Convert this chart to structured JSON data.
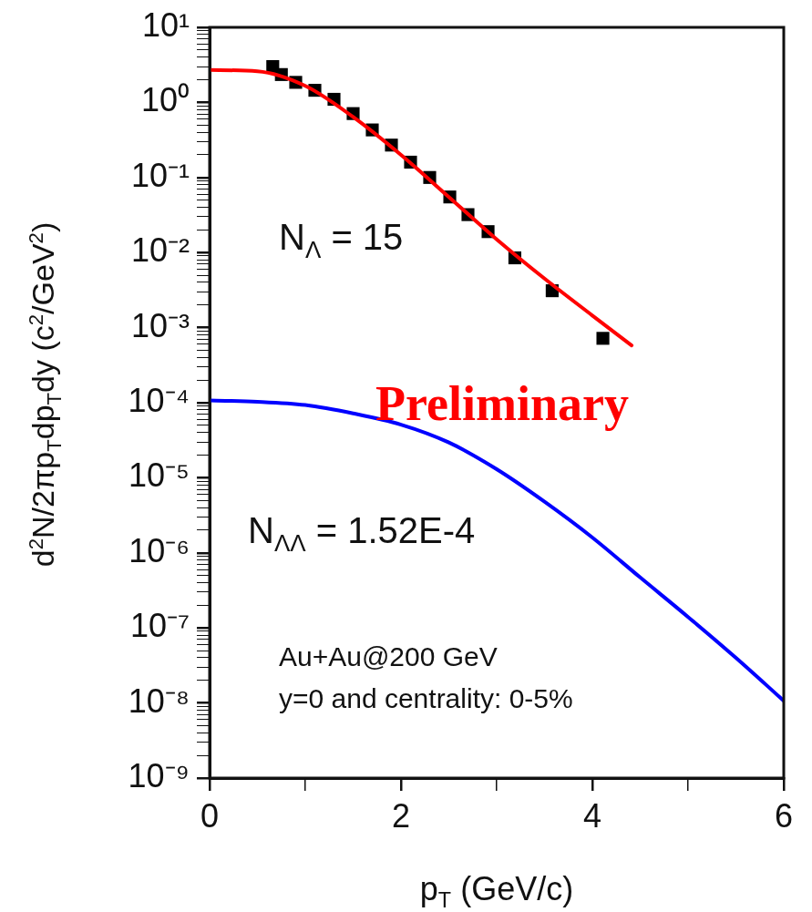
{
  "chart_data": {
    "type": "line",
    "xlabel": "p$_{T}$ (GeV/c)",
    "ylabel": "d$^{2}$N/2πp$_{T}$dp$_{T}$dy (c$^{2}$/GeV$^{2}$)",
    "log": "y",
    "grid": false,
    "legend": false,
    "xlim": [
      0,
      6
    ],
    "ylim": [
      1e-09,
      10
    ],
    "xticks": [
      0,
      {
        "value": 1,
        "label": null
      },
      2,
      {
        "value": 3,
        "label": null
      },
      4,
      {
        "value": 5,
        "label": null
      },
      6
    ],
    "yticks": [
      {
        "value": 1e-09,
        "label": "10⁻⁹"
      },
      {
        "value": 2e-09,
        "label": null
      },
      {
        "value": 3e-09,
        "label": null
      },
      {
        "value": 4e-09,
        "label": null
      },
      {
        "value": 5e-09,
        "label": null
      },
      {
        "value": 6e-09,
        "label": null
      },
      {
        "value": 7e-09,
        "label": null
      },
      {
        "value": 8e-09,
        "label": null
      },
      {
        "value": 9e-09,
        "label": null
      },
      {
        "value": 1e-08,
        "label": "10⁻⁸"
      },
      {
        "value": 2e-08,
        "label": null
      },
      {
        "value": 3e-08,
        "label": null
      },
      {
        "value": 4e-08,
        "label": null
      },
      {
        "value": 5e-08,
        "label": null
      },
      {
        "value": 6e-08,
        "label": null
      },
      {
        "value": 7e-08,
        "label": null
      },
      {
        "value": 8e-08,
        "label": null
      },
      {
        "value": 9e-08,
        "label": null
      },
      {
        "value": 1e-07,
        "label": "10⁻⁷"
      },
      {
        "value": 2e-07,
        "label": null
      },
      {
        "value": 3e-07,
        "label": null
      },
      {
        "value": 4e-07,
        "label": null
      },
      {
        "value": 5e-07,
        "label": null
      },
      {
        "value": 6e-07,
        "label": null
      },
      {
        "value": 7e-07,
        "label": null
      },
      {
        "value": 8e-07,
        "label": null
      },
      {
        "value": 9e-07,
        "label": null
      },
      {
        "value": 1e-06,
        "label": "10⁻⁶"
      },
      {
        "value": 2e-06,
        "label": null
      },
      {
        "value": 3e-06,
        "label": null
      },
      {
        "value": 4e-06,
        "label": null
      },
      {
        "value": 5e-06,
        "label": null
      },
      {
        "value": 6e-06,
        "label": null
      },
      {
        "value": 7e-06,
        "label": null
      },
      {
        "value": 8e-06,
        "label": null
      },
      {
        "value": 9e-06,
        "label": null
      },
      {
        "value": 1e-05,
        "label": "10⁻⁵"
      },
      {
        "value": 2e-05,
        "label": null
      },
      {
        "value": 3e-05,
        "label": null
      },
      {
        "value": 4e-05,
        "label": null
      },
      {
        "value": 5e-05,
        "label": null
      },
      {
        "value": 6e-05,
        "label": null
      },
      {
        "value": 7e-05,
        "label": null
      },
      {
        "value": 8e-05,
        "label": null
      },
      {
        "value": 9e-05,
        "label": null
      },
      {
        "value": 0.0001,
        "label": "10⁻⁴"
      },
      {
        "value": 0.0002,
        "label": null
      },
      {
        "value": 0.0003,
        "label": null
      },
      {
        "value": 0.0004,
        "label": null
      },
      {
        "value": 0.0005,
        "label": null
      },
      {
        "value": 0.0006,
        "label": null
      },
      {
        "value": 0.0007,
        "label": null
      },
      {
        "value": 0.0008,
        "label": null
      },
      {
        "value": 0.0009,
        "label": null
      },
      {
        "value": 0.001,
        "label": "10⁻³"
      },
      {
        "value": 0.002,
        "label": null
      },
      {
        "value": 0.003,
        "label": null
      },
      {
        "value": 0.004,
        "label": null
      },
      {
        "value": 0.005,
        "label": null
      },
      {
        "value": 0.006,
        "label": null
      },
      {
        "value": 0.007,
        "label": null
      },
      {
        "value": 0.008,
        "label": null
      },
      {
        "value": 0.009,
        "label": null
      },
      {
        "value": 0.01,
        "label": "10⁻²"
      },
      {
        "value": 0.02,
        "label": null
      },
      {
        "value": 0.03,
        "label": null
      },
      {
        "value": 0.04,
        "label": null
      },
      {
        "value": 0.05,
        "label": null
      },
      {
        "value": 0.06,
        "label": null
      },
      {
        "value": 0.07,
        "label": null
      },
      {
        "value": 0.08,
        "label": null
      },
      {
        "value": 0.09,
        "label": null
      },
      {
        "value": 0.1,
        "label": "10⁻¹"
      },
      {
        "value": 0.2,
        "label": null
      },
      {
        "value": 0.3,
        "label": null
      },
      {
        "value": 0.4,
        "label": null
      },
      {
        "value": 0.5,
        "label": null
      },
      {
        "value": 0.6,
        "label": null
      },
      {
        "value": 0.7,
        "label": null
      },
      {
        "value": 0.8,
        "label": null
      },
      {
        "value": 0.9,
        "label": null
      },
      {
        "value": 1,
        "label": "10⁰"
      },
      {
        "value": 2,
        "label": null
      },
      {
        "value": 3,
        "label": null
      },
      {
        "value": 4,
        "label": null
      },
      {
        "value": 5,
        "label": null
      },
      {
        "value": 6,
        "label": null
      },
      {
        "value": 7,
        "label": null
      },
      {
        "value": 8,
        "label": null
      },
      {
        "value": 9,
        "label": null
      },
      {
        "value": 10,
        "label": "10¹"
      }
    ],
    "series": [
      {
        "color": "#ff0000",
        "line_style": "solid",
        "marker": "none",
        "x": [
          0,
          0.5,
          1,
          1.5,
          2,
          2.5,
          3,
          3.5,
          4,
          4.41
        ],
        "values": [
          2.7,
          2.6,
          1.66,
          0.64,
          0.2,
          0.055,
          0.015,
          0.0045,
          0.00145,
          0.00058
        ]
      },
      {
        "color": "#0000ff",
        "line_style": "solid",
        "marker": "none",
        "x": [
          0,
          0.5,
          1,
          1.5,
          2,
          2.5,
          3,
          3.5,
          4,
          4.5,
          5,
          5.5,
          6
        ],
        "values": [
          0.000107,
          0.000103,
          9.3e-05,
          7.2e-05,
          5.1e-05,
          2.95e-05,
          1.3e-05,
          4.8e-06,
          1.6e-06,
          4.7e-07,
          1.4e-07,
          4e-08,
          1.07e-08
        ]
      },
      {
        "type": "scatter",
        "color": "#000000",
        "marker": "square",
        "x": [
          0.66,
          0.75,
          0.9,
          1.1,
          1.3,
          1.5,
          1.7,
          1.9,
          2.1,
          2.3,
          2.51,
          2.7,
          2.91,
          3.19,
          3.58,
          4.11
        ],
        "values": [
          3.0,
          2.35,
          1.85,
          1.45,
          1.1,
          0.71,
          0.43,
          0.27,
          0.16,
          0.1,
          0.055,
          0.032,
          0.019,
          0.0085,
          0.0031,
          0.00072
        ]
      }
    ],
    "annotations": [
      "N$_{Λ}$ = 15",
      "Preliminary",
      "N$_{ΛΛ}$ = 1.52E-4",
      "Au+Au@200 GeV",
      "y=0 and centrality: 0-5%"
    ]
  }
}
